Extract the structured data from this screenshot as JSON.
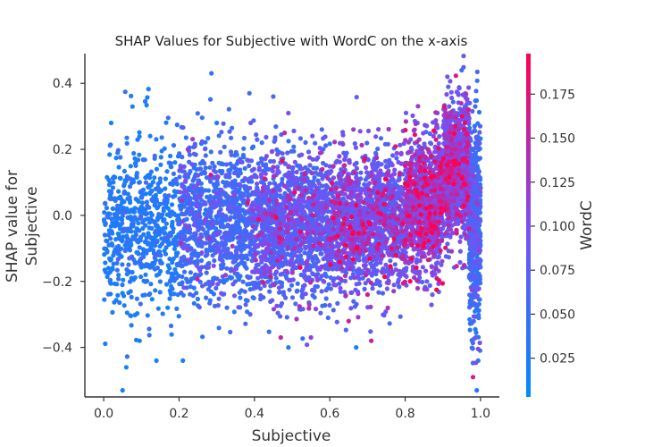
{
  "chart_data": {
    "type": "scatter",
    "title": "SHAP Values for Subjective with WordC on the x-axis",
    "xlabel": "Subjective",
    "ylabel_lines": [
      "SHAP value for",
      "Subjective"
    ],
    "xlim": [
      -0.05,
      1.05
    ],
    "ylim": [
      -0.55,
      0.49
    ],
    "xticks": [
      0.0,
      0.2,
      0.4,
      0.6,
      0.8,
      1.0
    ],
    "xtick_labels": [
      "0.0",
      "0.2",
      "0.4",
      "0.6",
      "0.8",
      "1.0"
    ],
    "yticks": [
      -0.4,
      -0.2,
      0.0,
      0.2,
      0.4
    ],
    "ytick_labels": [
      "−0.4",
      "−0.2",
      "0.0",
      "0.2",
      "0.4"
    ],
    "grid": false,
    "colorbar": {
      "label": "WordC",
      "range": [
        0.003,
        0.198
      ],
      "ticks": [
        0.025,
        0.05,
        0.075,
        0.1,
        0.125,
        0.15,
        0.175
      ],
      "tick_labels": [
        "0.025",
        "0.050",
        "0.075",
        "0.100",
        "0.125",
        "0.150",
        "0.175"
      ],
      "color_low": "#008bfb",
      "color_mid": "#7c4ef2",
      "color_high": "#ff0052"
    },
    "points": [
      {
        "x": 0.02,
        "y": 0.28,
        "c": 0.02
      },
      {
        "x": 0.05,
        "y": -0.53,
        "c": 0.02
      },
      {
        "x": 0.06,
        "y": -0.46,
        "c": 0.02
      },
      {
        "x": 0.14,
        "y": -0.44,
        "c": 0.02
      },
      {
        "x": 0.21,
        "y": -0.44,
        "c": 0.02
      },
      {
        "x": 0.3,
        "y": 0.28,
        "c": 0.03
      },
      {
        "x": 0.39,
        "y": 0.28,
        "c": 0.09
      },
      {
        "x": 0.45,
        "y": 0.36,
        "c": 0.06
      },
      {
        "x": 0.49,
        "y": 0.31,
        "c": 0.1
      },
      {
        "x": 0.48,
        "y": 0.25,
        "c": 0.14
      },
      {
        "x": 0.47,
        "y": -0.37,
        "c": 0.15
      },
      {
        "x": 0.49,
        "y": -0.4,
        "c": 0.03
      },
      {
        "x": 0.55,
        "y": -0.37,
        "c": 0.12
      },
      {
        "x": 0.65,
        "y": -0.32,
        "c": 0.16
      },
      {
        "x": 0.67,
        "y": -0.4,
        "c": 0.03
      },
      {
        "x": 0.71,
        "y": -0.38,
        "c": 0.16
      },
      {
        "x": 0.7,
        "y": -0.24,
        "c": 0.17
      },
      {
        "x": 0.95,
        "y": 0.44,
        "c": 0.04
      },
      {
        "x": 0.94,
        "y": 0.37,
        "c": 0.1
      },
      {
        "x": 0.92,
        "y": 0.3,
        "c": 0.14
      },
      {
        "x": 0.99,
        "y": -0.53,
        "c": 0.03
      },
      {
        "x": 0.98,
        "y": -0.49,
        "c": 0.16
      },
      {
        "x": 0.85,
        "y": 0.18,
        "c": 0.15
      },
      {
        "x": 0.8,
        "y": 0.15,
        "c": 0.16
      },
      {
        "x": 0.72,
        "y": 0.1,
        "c": 0.15
      }
    ],
    "clusters": [
      {
        "x0": 0.0,
        "x1": 0.2,
        "mean": -0.03,
        "sd": 0.13,
        "n": 650,
        "c_mean": 0.02,
        "c_sd": 0.012
      },
      {
        "x0": 0.2,
        "x1": 0.4,
        "mean": -0.02,
        "sd": 0.12,
        "n": 950,
        "c_mean": 0.035,
        "c_sd": 0.025
      },
      {
        "x0": 0.4,
        "x1": 0.6,
        "mean": -0.03,
        "sd": 0.11,
        "n": 1300,
        "c_mean": 0.045,
        "c_sd": 0.035
      },
      {
        "x0": 0.6,
        "x1": 0.8,
        "mean": -0.02,
        "sd": 0.1,
        "n": 1400,
        "c_mean": 0.055,
        "c_sd": 0.045
      },
      {
        "x0": 0.8,
        "x1": 0.9,
        "mean": 0.03,
        "sd": 0.1,
        "n": 1100,
        "c_mean": 0.065,
        "c_sd": 0.05
      },
      {
        "x0": 0.9,
        "x1": 0.97,
        "mean": 0.14,
        "sd": 0.1,
        "n": 1100,
        "c_mean": 0.06,
        "c_sd": 0.045
      },
      {
        "x0": 0.97,
        "x1": 1.0,
        "mean": -0.05,
        "sd": 0.15,
        "n": 600,
        "c_mean": 0.03,
        "c_sd": 0.025
      }
    ]
  }
}
